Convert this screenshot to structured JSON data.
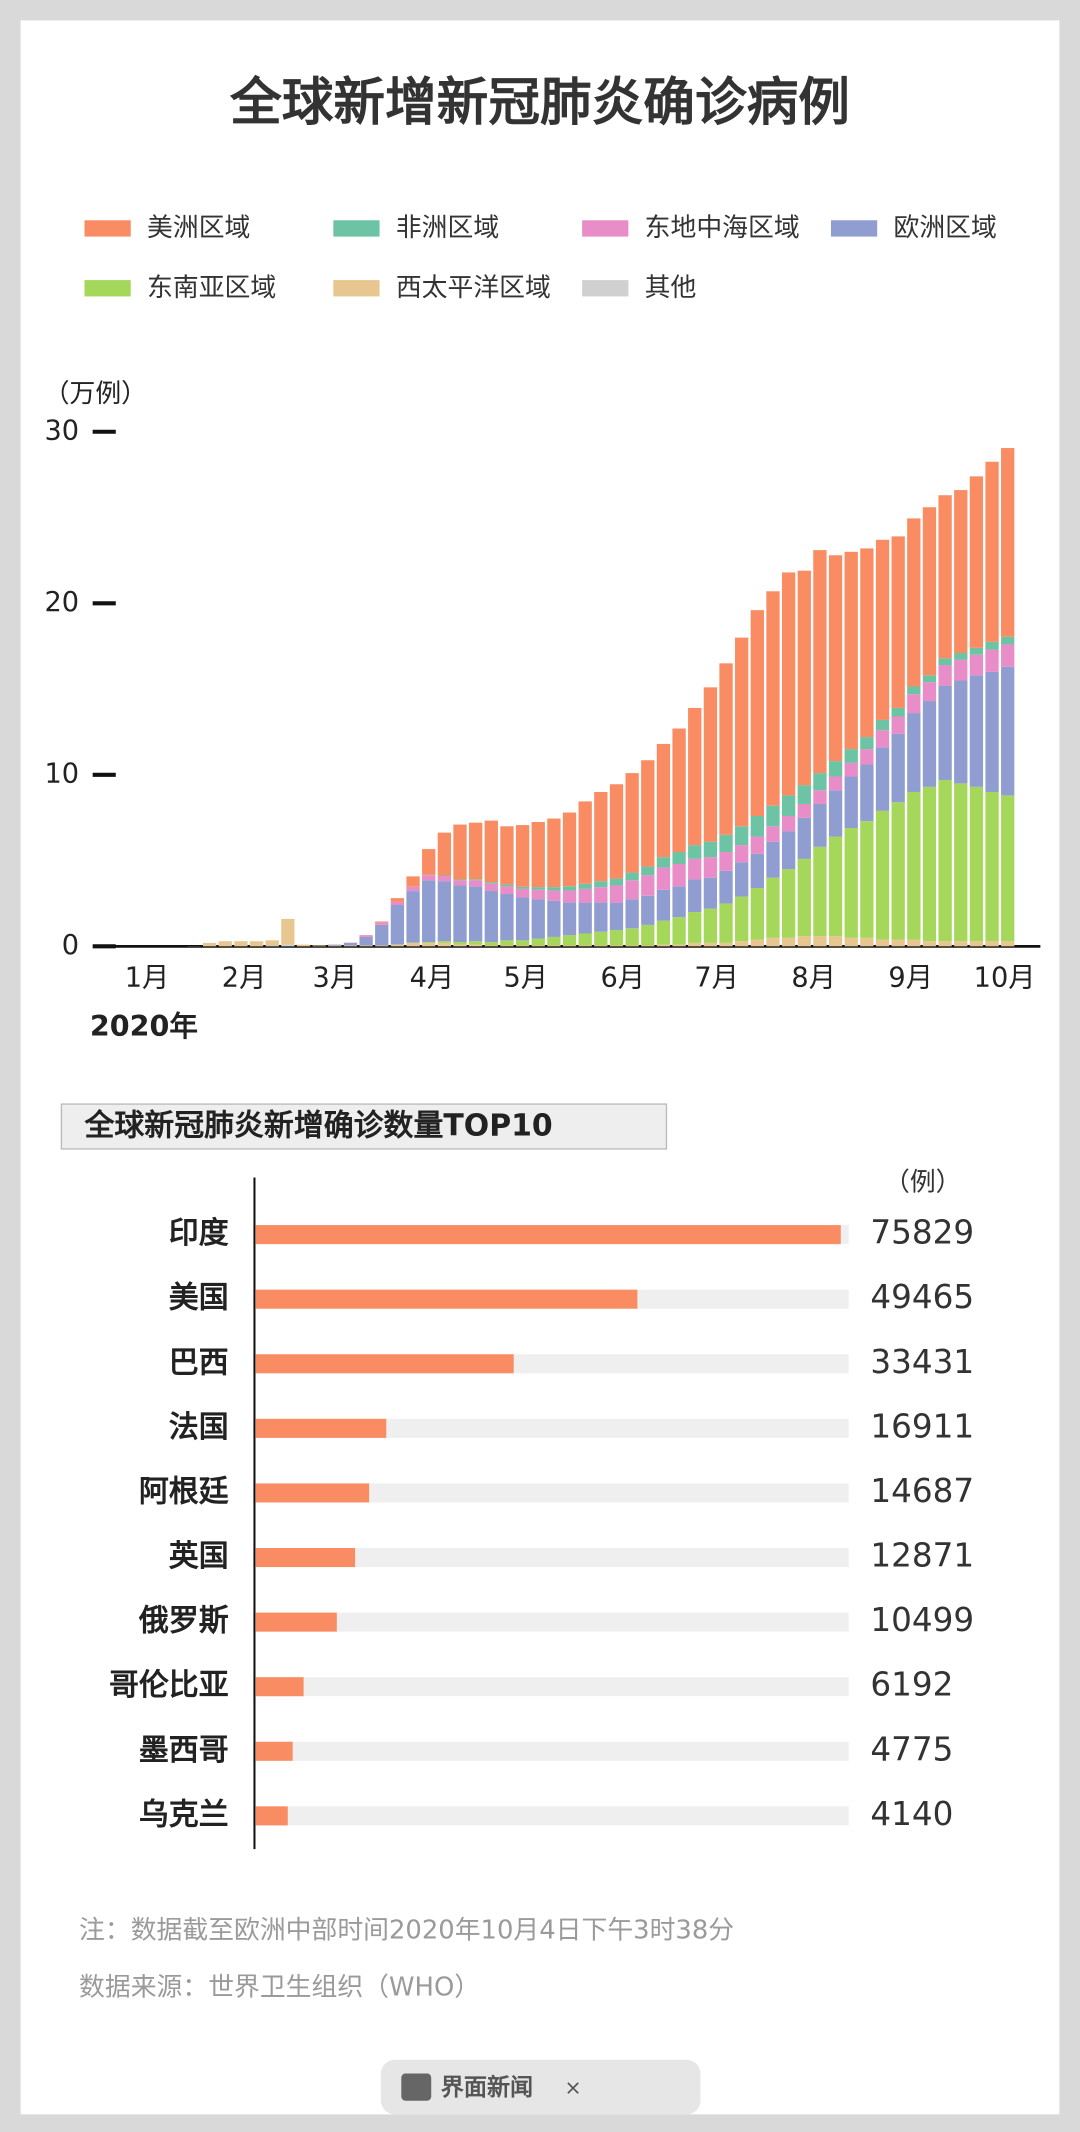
{
  "chart_data": [
    {
      "type": "bar",
      "stacked": true,
      "title": "全球新增新冠肺炎确诊病例",
      "ylabel": "（万例）",
      "xlabel": "2020年",
      "x": [
        0,
        5,
        10,
        15,
        20,
        25,
        30,
        35,
        40,
        45,
        50,
        55,
        60,
        65,
        70,
        75,
        80,
        85,
        90,
        95,
        100,
        105,
        110,
        115,
        120,
        125,
        130,
        135,
        140,
        145,
        150,
        155,
        160,
        165,
        170,
        175,
        180,
        185,
        190,
        195,
        200,
        205,
        210,
        215,
        220,
        225,
        230,
        235,
        240,
        245,
        250,
        255,
        260,
        265,
        270,
        275
      ],
      "xlim": [
        -16.5,
        285
      ],
      "xticks": [
        {
          "value": 0,
          "label": "1月"
        },
        {
          "value": 31,
          "label": "2月"
        },
        {
          "value": 60,
          "label": "3月"
        },
        {
          "value": 91,
          "label": "4月"
        },
        {
          "value": 121,
          "label": "5月"
        },
        {
          "value": 152,
          "label": "6月"
        },
        {
          "value": 182,
          "label": "7月"
        },
        {
          "value": 213,
          "label": "8月"
        },
        {
          "value": 244,
          "label": "9月"
        },
        {
          "value": 274,
          "label": "10月"
        }
      ],
      "ylim": [
        0,
        32.5
      ],
      "yticks": [
        0,
        10,
        20,
        30
      ],
      "grid": false,
      "series": [
        {
          "name": "美洲区域",
          "color": "#f98c63",
          "values": [
            0,
            0,
            0,
            0,
            0,
            0,
            0,
            0,
            0,
            0,
            0,
            0,
            0,
            0,
            0.01,
            0.05,
            0.2,
            0.6,
            1.5,
            2.5,
            3.2,
            3.3,
            3.6,
            3.4,
            3.6,
            3.8,
            4.0,
            4.3,
            4.8,
            5.2,
            5.5,
            5.8,
            6.2,
            6.6,
            7.2,
            8.0,
            9.0,
            10.0,
            11.0,
            12.0,
            12.5,
            13.0,
            12.5,
            13.0,
            12.0,
            11.5,
            11.0,
            10.5,
            10.0,
            9.8,
            9.8,
            9.5,
            9.5,
            10.0,
            10.5,
            11.0
          ]
        },
        {
          "name": "非洲区域",
          "color": "#6cc4a4",
          "values": [
            0,
            0,
            0,
            0,
            0,
            0,
            0,
            0,
            0,
            0,
            0,
            0,
            0,
            0,
            0,
            0,
            0,
            0.01,
            0.02,
            0.03,
            0.05,
            0.06,
            0.08,
            0.1,
            0.12,
            0.15,
            0.2,
            0.25,
            0.3,
            0.35,
            0.4,
            0.45,
            0.5,
            0.6,
            0.7,
            0.8,
            0.9,
            1.0,
            1.1,
            1.2,
            1.2,
            1.2,
            1.1,
            1.0,
            0.9,
            0.8,
            0.7,
            0.6,
            0.5,
            0.45,
            0.4,
            0.4,
            0.4,
            0.4,
            0.45,
            0.45
          ]
        },
        {
          "name": "东地中海区域",
          "color": "#e98dc8",
          "values": [
            0,
            0,
            0,
            0,
            0,
            0,
            0,
            0,
            0,
            0,
            0,
            0,
            0,
            0.02,
            0.1,
            0.15,
            0.2,
            0.25,
            0.3,
            0.3,
            0.3,
            0.35,
            0.4,
            0.45,
            0.5,
            0.55,
            0.6,
            0.7,
            0.8,
            0.9,
            1.0,
            1.1,
            1.2,
            1.3,
            1.3,
            1.2,
            1.2,
            1.1,
            1.0,
            1.0,
            0.9,
            0.9,
            0.8,
            0.8,
            0.8,
            0.8,
            0.9,
            1.0,
            1.0,
            1.1,
            1.1,
            1.2,
            1.2,
            1.2,
            1.3,
            1.3
          ]
        },
        {
          "name": "欧洲区域",
          "color": "#8f9dd0",
          "values": [
            0,
            0,
            0,
            0,
            0,
            0,
            0,
            0,
            0,
            0,
            0,
            0.01,
            0.05,
            0.15,
            0.5,
            1.2,
            2.3,
            3.0,
            3.6,
            3.5,
            3.3,
            3.2,
            3.0,
            2.7,
            2.5,
            2.3,
            2.1,
            1.9,
            1.8,
            1.7,
            1.6,
            1.7,
            1.7,
            1.8,
            1.8,
            1.9,
            1.8,
            1.9,
            2.0,
            2.0,
            2.1,
            2.2,
            2.4,
            2.5,
            2.7,
            3.0,
            3.3,
            3.7,
            4.0,
            4.6,
            5.0,
            5.5,
            6.0,
            6.5,
            7.0,
            7.5
          ]
        },
        {
          "name": "东南亚区域",
          "color": "#a5d85a",
          "values": [
            0,
            0,
            0,
            0,
            0,
            0,
            0,
            0,
            0,
            0,
            0,
            0,
            0,
            0,
            0,
            0,
            0.01,
            0.02,
            0.05,
            0.1,
            0.15,
            0.2,
            0.2,
            0.3,
            0.3,
            0.4,
            0.5,
            0.6,
            0.7,
            0.8,
            0.9,
            1.0,
            1.2,
            1.4,
            1.6,
            1.8,
            2.0,
            2.3,
            2.6,
            3.0,
            3.5,
            4.0,
            4.5,
            5.2,
            5.8,
            6.4,
            6.8,
            7.5,
            8.0,
            8.6,
            9.0,
            9.4,
            9.2,
            9.0,
            8.7,
            8.5
          ]
        },
        {
          "name": "西太平洋区域",
          "color": "#e8c690",
          "values": [
            0,
            0,
            0,
            0.01,
            0.2,
            0.3,
            0.3,
            0.3,
            0.3,
            1.5,
            0.1,
            0.05,
            0.05,
            0.05,
            0.05,
            0.05,
            0.1,
            0.2,
            0.2,
            0.2,
            0.1,
            0.1,
            0.05,
            0.05,
            0.05,
            0.05,
            0.05,
            0.05,
            0.05,
            0.05,
            0.05,
            0.05,
            0.05,
            0.1,
            0.1,
            0.2,
            0.2,
            0.2,
            0.3,
            0.4,
            0.5,
            0.5,
            0.6,
            0.6,
            0.6,
            0.5,
            0.5,
            0.4,
            0.4,
            0.4,
            0.3,
            0.3,
            0.3,
            0.3,
            0.3,
            0.3
          ]
        },
        {
          "name": "其他",
          "color": "#d0d0d0",
          "values": [
            0,
            0,
            0,
            0,
            0,
            0,
            0,
            0,
            0.05,
            0.1,
            0,
            0,
            0,
            0,
            0,
            0,
            0,
            0,
            0,
            0,
            0,
            0,
            0,
            0,
            0,
            0,
            0,
            0,
            0,
            0,
            0,
            0,
            0,
            0,
            0,
            0,
            0,
            0,
            0,
            0,
            0,
            0,
            0,
            0,
            0,
            0,
            0,
            0,
            0,
            0,
            0,
            0,
            0,
            0,
            0,
            0
          ]
        }
      ]
    },
    {
      "type": "hbar",
      "title": "全球新冠肺炎新增确诊数量TOP10",
      "xlabel": "（例）",
      "categories": [
        "印度",
        "美国",
        "巴西",
        "法国",
        "阿根廷",
        "英国",
        "俄罗斯",
        "哥伦比亚",
        "墨西哥",
        "乌克兰"
      ],
      "values": [
        75829,
        49465,
        33431,
        16911,
        14687,
        12871,
        10499,
        6192,
        4775,
        4140
      ],
      "color": "#f98c63",
      "track_color": "#efefef",
      "xlim": [
        0,
        76500
      ]
    }
  ],
  "notes": [
    "注：数据截至欧洲中部时间2020年10月4日下午3时38分",
    "数据来源：世界卫生组织（WHO）"
  ],
  "footer": {
    "brand": "界面新闻",
    "separator": "×"
  }
}
